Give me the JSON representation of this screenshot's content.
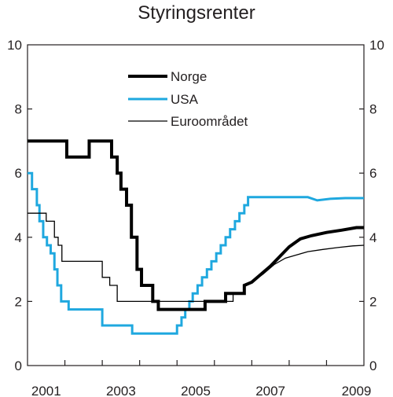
{
  "chart_data": {
    "type": "line",
    "title": "Styringsrenter",
    "xlabel": "",
    "ylabel": "",
    "xlim": [
      2000.0,
      2009.0
    ],
    "ylim": [
      0,
      10
    ],
    "y_ticks": [
      0,
      2,
      4,
      6,
      8,
      10
    ],
    "x_tick_labels": [
      {
        "label": "2001",
        "x": 2000.5
      },
      {
        "label": "2003",
        "x": 2002.5
      },
      {
        "label": "2005",
        "x": 2004.5
      },
      {
        "label": "2007",
        "x": 2006.5
      },
      {
        "label": "2009",
        "x": 2008.8
      }
    ],
    "grid": false,
    "legend_position": "top-center",
    "series": [
      {
        "name": "Norge",
        "color": "#000000",
        "style": "thick",
        "points": [
          [
            2000.0,
            7.0
          ],
          [
            2001.05,
            7.0
          ],
          [
            2001.05,
            6.5
          ],
          [
            2001.65,
            6.5
          ],
          [
            2001.65,
            7.0
          ],
          [
            2002.25,
            7.0
          ],
          [
            2002.25,
            6.5
          ],
          [
            2002.4,
            6.5
          ],
          [
            2002.4,
            6.0
          ],
          [
            2002.5,
            6.0
          ],
          [
            2002.5,
            5.5
          ],
          [
            2002.65,
            5.5
          ],
          [
            2002.65,
            5.0
          ],
          [
            2002.78,
            5.0
          ],
          [
            2002.78,
            4.0
          ],
          [
            2002.93,
            4.0
          ],
          [
            2002.93,
            3.0
          ],
          [
            2003.05,
            3.0
          ],
          [
            2003.05,
            2.5
          ],
          [
            2003.35,
            2.5
          ],
          [
            2003.35,
            2.0
          ],
          [
            2003.5,
            2.0
          ],
          [
            2003.5,
            1.75
          ],
          [
            2004.75,
            1.75
          ],
          [
            2004.75,
            2.0
          ],
          [
            2005.3,
            2.0
          ],
          [
            2005.3,
            2.25
          ],
          [
            2005.8,
            2.25
          ],
          [
            2005.8,
            2.5
          ],
          [
            2006.0,
            2.6
          ],
          [
            2006.2,
            2.8
          ],
          [
            2006.5,
            3.1
          ],
          [
            2006.75,
            3.4
          ],
          [
            2007.0,
            3.7
          ],
          [
            2007.3,
            3.95
          ],
          [
            2007.6,
            4.05
          ],
          [
            2008.0,
            4.15
          ],
          [
            2008.4,
            4.22
          ],
          [
            2008.8,
            4.3
          ],
          [
            2009.0,
            4.3
          ]
        ]
      },
      {
        "name": "USA",
        "color": "#1fa8df",
        "style": "medium",
        "points": [
          [
            2000.0,
            6.0
          ],
          [
            2000.12,
            6.0
          ],
          [
            2000.12,
            5.5
          ],
          [
            2000.25,
            5.5
          ],
          [
            2000.25,
            5.0
          ],
          [
            2000.32,
            5.0
          ],
          [
            2000.32,
            4.5
          ],
          [
            2000.42,
            4.5
          ],
          [
            2000.42,
            4.0
          ],
          [
            2000.52,
            4.0
          ],
          [
            2000.52,
            3.75
          ],
          [
            2000.62,
            3.75
          ],
          [
            2000.62,
            3.5
          ],
          [
            2000.72,
            3.5
          ],
          [
            2000.72,
            3.0
          ],
          [
            2000.8,
            3.0
          ],
          [
            2000.8,
            2.5
          ],
          [
            2000.9,
            2.5
          ],
          [
            2000.9,
            2.0
          ],
          [
            2001.1,
            2.0
          ],
          [
            2001.1,
            1.75
          ],
          [
            2002.0,
            1.75
          ],
          [
            2002.0,
            1.25
          ],
          [
            2002.8,
            1.25
          ],
          [
            2002.8,
            1.0
          ],
          [
            2004.0,
            1.0
          ],
          [
            2004.0,
            1.25
          ],
          [
            2004.12,
            1.25
          ],
          [
            2004.12,
            1.5
          ],
          [
            2004.22,
            1.5
          ],
          [
            2004.22,
            1.75
          ],
          [
            2004.33,
            1.75
          ],
          [
            2004.33,
            2.0
          ],
          [
            2004.42,
            2.0
          ],
          [
            2004.42,
            2.25
          ],
          [
            2004.55,
            2.25
          ],
          [
            2004.55,
            2.5
          ],
          [
            2004.67,
            2.5
          ],
          [
            2004.67,
            2.75
          ],
          [
            2004.8,
            2.75
          ],
          [
            2004.8,
            3.0
          ],
          [
            2004.92,
            3.0
          ],
          [
            2004.92,
            3.25
          ],
          [
            2005.05,
            3.25
          ],
          [
            2005.05,
            3.5
          ],
          [
            2005.17,
            3.5
          ],
          [
            2005.17,
            3.75
          ],
          [
            2005.3,
            3.75
          ],
          [
            2005.3,
            4.0
          ],
          [
            2005.42,
            4.0
          ],
          [
            2005.42,
            4.25
          ],
          [
            2005.55,
            4.25
          ],
          [
            2005.55,
            4.5
          ],
          [
            2005.67,
            4.5
          ],
          [
            2005.67,
            4.75
          ],
          [
            2005.8,
            4.75
          ],
          [
            2005.8,
            5.0
          ],
          [
            2005.9,
            5.0
          ],
          [
            2005.9,
            5.25
          ],
          [
            2007.5,
            5.25
          ],
          [
            2007.75,
            5.15
          ],
          [
            2008.1,
            5.2
          ],
          [
            2008.5,
            5.22
          ],
          [
            2009.0,
            5.22
          ]
        ]
      },
      {
        "name": "Euroområdet",
        "color": "#000000",
        "style": "thin",
        "points": [
          [
            2000.0,
            4.75
          ],
          [
            2000.5,
            4.75
          ],
          [
            2000.5,
            4.5
          ],
          [
            2000.72,
            4.5
          ],
          [
            2000.72,
            4.0
          ],
          [
            2000.82,
            4.0
          ],
          [
            2000.82,
            3.75
          ],
          [
            2000.92,
            3.75
          ],
          [
            2000.92,
            3.25
          ],
          [
            2002.0,
            3.25
          ],
          [
            2002.0,
            2.75
          ],
          [
            2002.2,
            2.75
          ],
          [
            2002.2,
            2.5
          ],
          [
            2002.4,
            2.5
          ],
          [
            2002.4,
            2.0
          ],
          [
            2005.5,
            2.0
          ],
          [
            2005.5,
            2.25
          ],
          [
            2005.8,
            2.25
          ],
          [
            2005.8,
            2.5
          ],
          [
            2006.0,
            2.6
          ],
          [
            2006.3,
            2.85
          ],
          [
            2006.6,
            3.15
          ],
          [
            2006.9,
            3.35
          ],
          [
            2007.2,
            3.45
          ],
          [
            2007.5,
            3.55
          ],
          [
            2007.9,
            3.62
          ],
          [
            2008.3,
            3.68
          ],
          [
            2008.7,
            3.73
          ],
          [
            2009.0,
            3.75
          ]
        ]
      }
    ]
  }
}
